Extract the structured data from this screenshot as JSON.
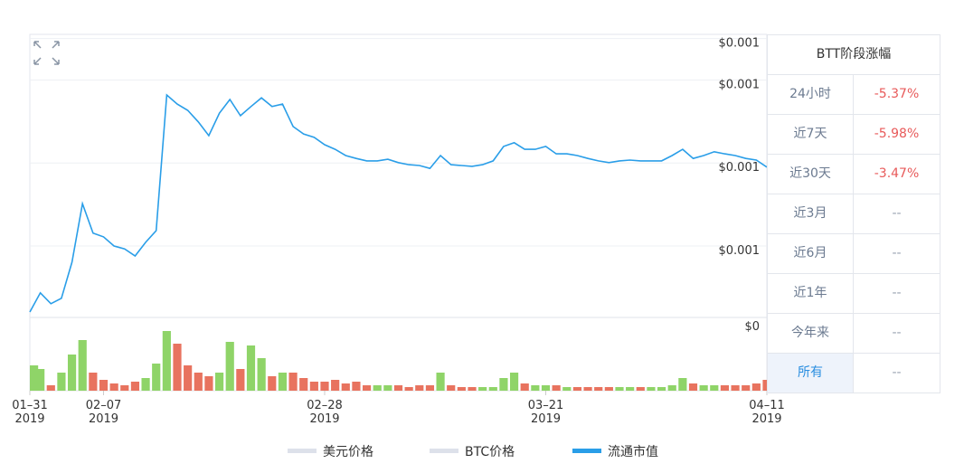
{
  "chart_data": {
    "type": "line",
    "x": [
      "2019-01-31",
      "2019-02-01",
      "2019-02-02",
      "2019-02-03",
      "2019-02-04",
      "2019-02-05",
      "2019-02-06",
      "2019-02-07",
      "2019-02-08",
      "2019-02-09",
      "2019-02-10",
      "2019-02-11",
      "2019-02-12",
      "2019-02-13",
      "2019-02-14",
      "2019-02-15",
      "2019-02-16",
      "2019-02-17",
      "2019-02-18",
      "2019-02-19",
      "2019-02-20",
      "2019-02-21",
      "2019-02-22",
      "2019-02-23",
      "2019-02-24",
      "2019-02-25",
      "2019-02-26",
      "2019-02-27",
      "2019-02-28",
      "2019-03-01",
      "2019-03-02",
      "2019-03-03",
      "2019-03-04",
      "2019-03-05",
      "2019-03-06",
      "2019-03-07",
      "2019-03-08",
      "2019-03-09",
      "2019-03-10",
      "2019-03-11",
      "2019-03-12",
      "2019-03-13",
      "2019-03-14",
      "2019-03-15",
      "2019-03-16",
      "2019-03-17",
      "2019-03-18",
      "2019-03-19",
      "2019-03-20",
      "2019-03-21",
      "2019-03-22",
      "2019-03-23",
      "2019-03-24",
      "2019-03-25",
      "2019-03-26",
      "2019-03-27",
      "2019-03-28",
      "2019-03-29",
      "2019-03-30",
      "2019-03-31",
      "2019-04-01",
      "2019-04-02",
      "2019-04-03",
      "2019-04-04",
      "2019-04-05",
      "2019-04-06",
      "2019-04-07",
      "2019-04-08",
      "2019-04-09",
      "2019-04-10",
      "2019-04-11"
    ],
    "xlim": [
      "2019-01-31",
      "2019-04-11"
    ],
    "xticks": [
      {
        "value": "2019-01-31",
        "label": "01–31\n2019"
      },
      {
        "value": "2019-02-07",
        "label": "02–07\n2019"
      },
      {
        "value": "2019-02-28",
        "label": "02–28\n2019"
      },
      {
        "value": "2019-03-21",
        "label": "03–21\n2019"
      },
      {
        "value": "2019-04-11",
        "label": "04–11\n2019"
      }
    ],
    "ylim": [
      0.00063,
      0.00131
    ],
    "yticks": [
      {
        "value": 0.0008,
        "label": "$0.001"
      },
      {
        "value": 0.001,
        "label": "$0.001"
      },
      {
        "value": 0.0012,
        "label": "$0.001"
      },
      {
        "value": 0.0013,
        "label": "$0.001"
      }
    ],
    "grid": true,
    "series": [
      {
        "name": "美元价格",
        "color": "#dde1ea",
        "visible": false
      },
      {
        "name": "BTC价格",
        "color": "#dde1ea",
        "visible": false
      },
      {
        "name": "流通市值",
        "color": "#2a9ee8",
        "visible": true,
        "values": [
          0.000641,
          0.000687,
          0.000661,
          0.000674,
          0.000761,
          0.000902,
          0.000831,
          0.000822,
          0.0008,
          0.000793,
          0.000776,
          0.000809,
          0.000837,
          0.001164,
          0.001142,
          0.001127,
          0.001099,
          0.001066,
          0.00112,
          0.001153,
          0.001114,
          0.001136,
          0.001157,
          0.001136,
          0.001142,
          0.001088,
          0.00107,
          0.001062,
          0.001044,
          0.001033,
          0.001018,
          0.001011,
          0.001005,
          0.001005,
          0.001009,
          0.001001,
          0.000996,
          0.000994,
          0.000987,
          0.001018,
          0.000996,
          0.000994,
          0.000992,
          0.000996,
          0.001005,
          0.00104,
          0.001049,
          0.001033,
          0.001033,
          0.00104,
          0.001022,
          0.001022,
          0.001018,
          0.001011,
          0.001005,
          0.001001,
          0.001005,
          0.001007,
          0.001005,
          0.001005,
          0.001005,
          0.001018,
          0.001033,
          0.001011,
          0.001018,
          0.001027,
          0.001022,
          0.001018,
          0.001011,
          0.001007,
          0.00099
        ]
      }
    ],
    "volume": {
      "type": "bar",
      "ylim": [
        0,
        0.4
      ],
      "yticks": [
        {
          "value": 0.4,
          "label": "$0"
        }
      ],
      "up_color": "#8fd468",
      "down_color": "#e8735f",
      "values": [
        0.14,
        0.12,
        0.03,
        0.1,
        0.2,
        0.28,
        0.1,
        0.06,
        0.04,
        0.03,
        0.05,
        0.07,
        0.15,
        0.33,
        0.26,
        0.14,
        0.1,
        0.08,
        0.1,
        0.27,
        0.12,
        0.25,
        0.18,
        0.08,
        0.1,
        0.1,
        0.07,
        0.05,
        0.05,
        0.06,
        0.04,
        0.05,
        0.03,
        0.03,
        0.03,
        0.03,
        0.02,
        0.03,
        0.03,
        0.1,
        0.03,
        0.02,
        0.02,
        0.02,
        0.02,
        0.07,
        0.1,
        0.04,
        0.03,
        0.03,
        0.03,
        0.02,
        0.02,
        0.02,
        0.02,
        0.02,
        0.02,
        0.02,
        0.02,
        0.02,
        0.02,
        0.03,
        0.07,
        0.04,
        0.03,
        0.03,
        0.03,
        0.03,
        0.03,
        0.04,
        0.06
      ]
    }
  },
  "table": {
    "title": "BTT阶段涨幅",
    "selected": 7,
    "rows": [
      [
        "24小时",
        "-5.37%"
      ],
      [
        "近7天",
        "-5.98%"
      ],
      [
        "近30天",
        "-3.47%"
      ],
      [
        "近3月",
        "--"
      ],
      [
        "近6月",
        "--"
      ],
      [
        "近1年",
        "--"
      ],
      [
        "今年来",
        "--"
      ],
      [
        "所有",
        "--"
      ]
    ],
    "negative_color": "#e85a5a",
    "empty_color": "#9aa3b2"
  }
}
